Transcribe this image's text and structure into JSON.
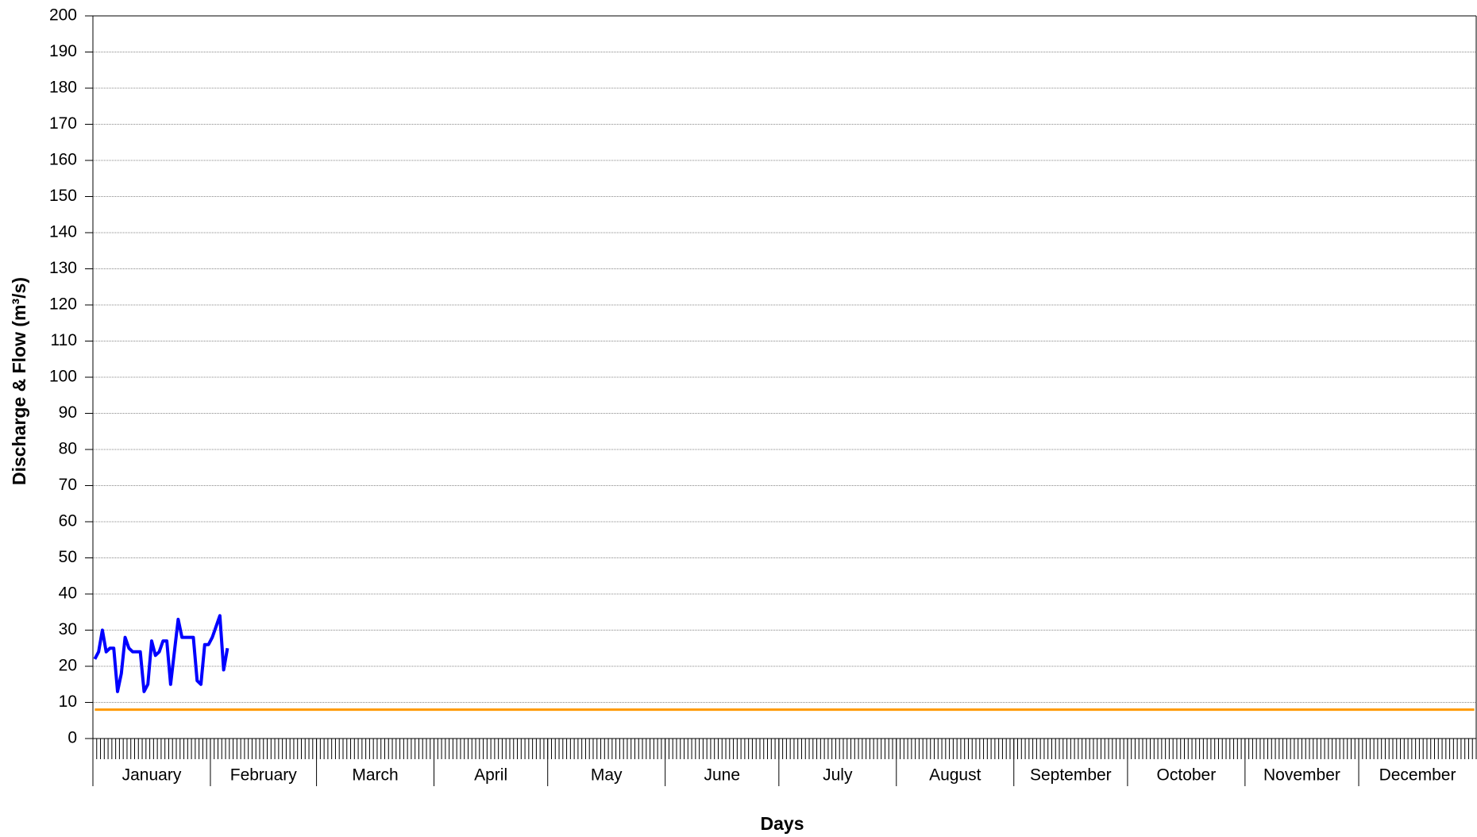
{
  "chart_data": {
    "type": "line",
    "x_label": "Days",
    "y_label": "Discharge & Flow (m³/s)",
    "categories": [
      "January",
      "February",
      "March",
      "April",
      "May",
      "June",
      "July",
      "August",
      "September",
      "October",
      "November",
      "December"
    ],
    "xlim": [
      0.5,
      365.5
    ],
    "ylim": [
      0,
      200
    ],
    "yticks": [
      0,
      10,
      20,
      30,
      40,
      50,
      60,
      70,
      80,
      90,
      100,
      110,
      120,
      130,
      140,
      150,
      160,
      170,
      180,
      190,
      200
    ],
    "grid": true,
    "series": [
      {
        "color": "#0000ff",
        "x": [
          1,
          2,
          3,
          4,
          5,
          6,
          7,
          8,
          9,
          10,
          11,
          12,
          13,
          14,
          15,
          16,
          17,
          18,
          19,
          20,
          21,
          22,
          23,
          24,
          25,
          26,
          27,
          28,
          29,
          30,
          31,
          32,
          33,
          34,
          35,
          36
        ],
        "values": [
          22,
          24,
          30,
          24,
          25,
          25,
          13,
          18,
          28,
          25,
          24,
          24,
          24,
          13,
          15,
          27,
          23,
          24,
          27,
          27,
          15,
          24,
          33,
          28,
          28,
          28,
          28,
          16,
          15,
          26,
          26,
          28,
          31,
          34,
          19,
          25
        ]
      },
      {
        "color": "#ff9900",
        "x": [
          1,
          365
        ],
        "values": [
          8,
          8
        ]
      }
    ]
  }
}
